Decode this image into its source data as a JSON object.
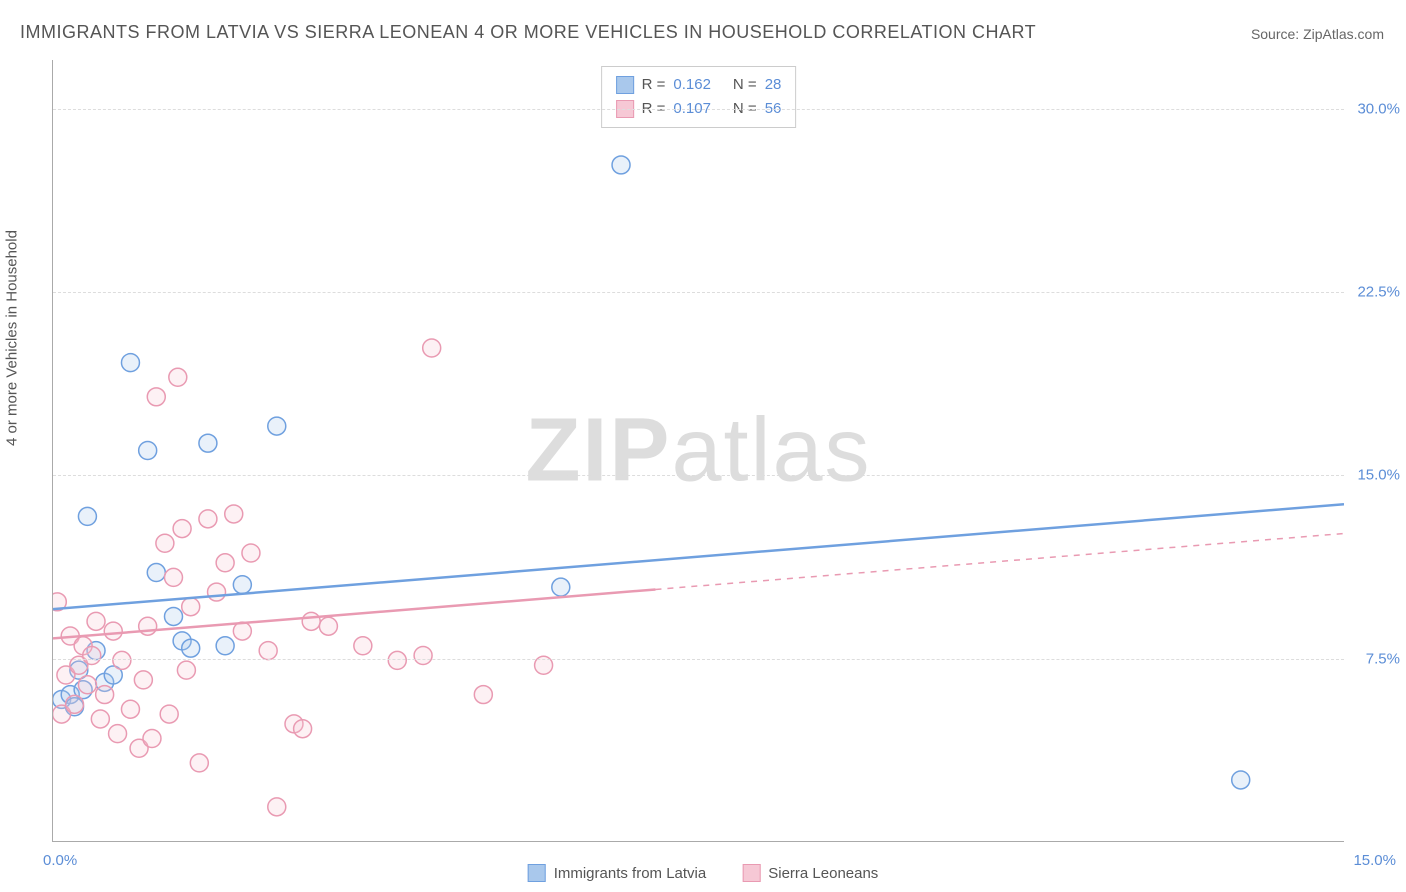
{
  "title": "IMMIGRANTS FROM LATVIA VS SIERRA LEONEAN 4 OR MORE VEHICLES IN HOUSEHOLD CORRELATION CHART",
  "source": "Source: ZipAtlas.com",
  "watermark_zip": "ZIP",
  "watermark_atlas": "atlas",
  "yaxis_title": "4 or more Vehicles in Household",
  "chart": {
    "type": "scatter-with-trendlines",
    "xlim": [
      0,
      15
    ],
    "ylim": [
      0,
      32
    ],
    "x_ticks": [
      {
        "value": 0,
        "label": "0.0%"
      },
      {
        "value": 15,
        "label": "15.0%"
      }
    ],
    "y_ticks": [
      {
        "value": 7.5,
        "label": "7.5%"
      },
      {
        "value": 15.0,
        "label": "15.0%"
      },
      {
        "value": 22.5,
        "label": "22.5%"
      },
      {
        "value": 30.0,
        "label": "30.0%"
      }
    ],
    "gridline_color": "#dddddd",
    "axis_color": "#aaaaaa",
    "background_color": "#ffffff",
    "marker_radius": 9,
    "marker_stroke_width": 1.5,
    "marker_fill_opacity": 0.25,
    "trendline_width": 2.5,
    "series": [
      {
        "name": "Immigrants from Latvia",
        "color_stroke": "#6fa0df",
        "color_fill": "#a9c8ec",
        "r": "0.162",
        "n": "28",
        "trendline": {
          "x0": 0,
          "y0": 9.5,
          "x1": 15,
          "y1": 13.8,
          "dashed_from_x": 15
        },
        "points": [
          [
            0.1,
            5.8
          ],
          [
            0.2,
            6.0
          ],
          [
            0.25,
            5.5
          ],
          [
            0.3,
            7.0
          ],
          [
            0.35,
            6.2
          ],
          [
            0.4,
            13.3
          ],
          [
            0.5,
            7.8
          ],
          [
            0.6,
            6.5
          ],
          [
            0.7,
            6.8
          ],
          [
            0.9,
            19.6
          ],
          [
            1.1,
            16.0
          ],
          [
            1.2,
            11.0
          ],
          [
            1.4,
            9.2
          ],
          [
            1.5,
            8.2
          ],
          [
            1.6,
            7.9
          ],
          [
            1.8,
            16.3
          ],
          [
            2.0,
            8.0
          ],
          [
            2.2,
            10.5
          ],
          [
            2.6,
            17.0
          ],
          [
            5.9,
            10.4
          ],
          [
            6.6,
            27.7
          ],
          [
            13.8,
            2.5
          ]
        ]
      },
      {
        "name": "Sierra Leoneans",
        "color_stroke": "#e99ab2",
        "color_fill": "#f6c8d5",
        "r": "0.107",
        "n": "56",
        "trendline": {
          "x0": 0,
          "y0": 8.3,
          "x1": 15,
          "y1": 12.6,
          "dashed_from_x": 7
        },
        "points": [
          [
            0.05,
            9.8
          ],
          [
            0.1,
            5.2
          ],
          [
            0.15,
            6.8
          ],
          [
            0.2,
            8.4
          ],
          [
            0.25,
            5.6
          ],
          [
            0.3,
            7.2
          ],
          [
            0.35,
            8.0
          ],
          [
            0.4,
            6.4
          ],
          [
            0.45,
            7.6
          ],
          [
            0.5,
            9.0
          ],
          [
            0.55,
            5.0
          ],
          [
            0.6,
            6.0
          ],
          [
            0.7,
            8.6
          ],
          [
            0.75,
            4.4
          ],
          [
            0.8,
            7.4
          ],
          [
            0.9,
            5.4
          ],
          [
            1.0,
            3.8
          ],
          [
            1.05,
            6.6
          ],
          [
            1.1,
            8.8
          ],
          [
            1.15,
            4.2
          ],
          [
            1.2,
            18.2
          ],
          [
            1.3,
            12.2
          ],
          [
            1.35,
            5.2
          ],
          [
            1.4,
            10.8
          ],
          [
            1.45,
            19.0
          ],
          [
            1.5,
            12.8
          ],
          [
            1.55,
            7.0
          ],
          [
            1.6,
            9.6
          ],
          [
            1.7,
            3.2
          ],
          [
            1.8,
            13.2
          ],
          [
            1.9,
            10.2
          ],
          [
            2.0,
            11.4
          ],
          [
            2.1,
            13.4
          ],
          [
            2.2,
            8.6
          ],
          [
            2.3,
            11.8
          ],
          [
            2.5,
            7.8
          ],
          [
            2.6,
            1.4
          ],
          [
            2.8,
            4.8
          ],
          [
            2.9,
            4.6
          ],
          [
            3.0,
            9.0
          ],
          [
            3.2,
            8.8
          ],
          [
            3.6,
            8.0
          ],
          [
            4.0,
            7.4
          ],
          [
            4.3,
            7.6
          ],
          [
            4.4,
            20.2
          ],
          [
            5.0,
            6.0
          ],
          [
            5.7,
            7.2
          ]
        ]
      }
    ]
  },
  "legend_r_label": "R =",
  "legend_n_label": "N =",
  "colors": {
    "tick_label": "#5b8dd6",
    "text": "#555555"
  }
}
